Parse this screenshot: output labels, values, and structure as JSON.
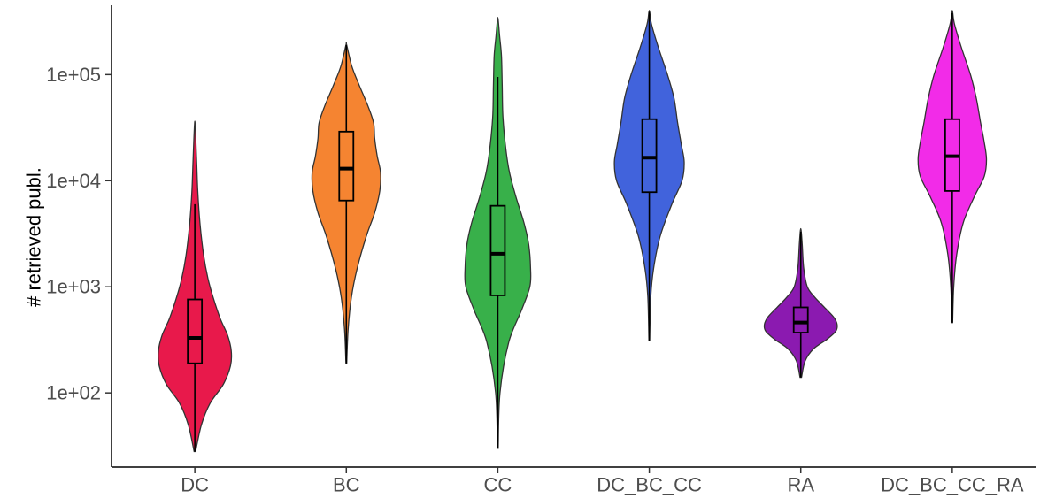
{
  "chart_data": {
    "type": "violin",
    "ylabel": "# retrieved publ.",
    "xlabel": "",
    "y_scale": "log10",
    "ylim": [
      20,
      450000
    ],
    "y_ticks": [
      100,
      1000,
      10000,
      100000
    ],
    "y_tick_labels": [
      "1e+02",
      "1e+03",
      "1e+04",
      "1e+05"
    ],
    "categories": [
      "DC",
      "BC",
      "CC",
      "DC_BC_CC",
      "RA",
      "DC_BC_CC_RA"
    ],
    "series": [
      {
        "category": "DC",
        "color": "#E8194B",
        "min": 28,
        "q1": 190,
        "median": 330,
        "q3": 760,
        "whisker_high": 6000,
        "max": 33000,
        "density": [
          [
            28,
            0.02
          ],
          [
            50,
            0.18
          ],
          [
            80,
            0.42
          ],
          [
            120,
            0.78
          ],
          [
            180,
            0.98
          ],
          [
            250,
            1.0
          ],
          [
            350,
            0.9
          ],
          [
            500,
            0.7
          ],
          [
            800,
            0.5
          ],
          [
            1200,
            0.36
          ],
          [
            2000,
            0.24
          ],
          [
            4000,
            0.14
          ],
          [
            8000,
            0.08
          ],
          [
            15000,
            0.05
          ],
          [
            33000,
            0.01
          ]
        ]
      },
      {
        "category": "BC",
        "color": "#F58431",
        "min": 190,
        "q1": 6500,
        "median": 13000,
        "q3": 29000,
        "whisker_high": 190000,
        "max": 190000,
        "density": [
          [
            190,
            0.01
          ],
          [
            400,
            0.05
          ],
          [
            800,
            0.14
          ],
          [
            1500,
            0.3
          ],
          [
            3000,
            0.55
          ],
          [
            5000,
            0.78
          ],
          [
            8000,
            0.92
          ],
          [
            12000,
            0.94
          ],
          [
            17000,
            0.85
          ],
          [
            25000,
            0.78
          ],
          [
            35000,
            0.75
          ],
          [
            50000,
            0.6
          ],
          [
            80000,
            0.35
          ],
          [
            120000,
            0.15
          ],
          [
            190000,
            0.01
          ]
        ]
      },
      {
        "category": "CC",
        "color": "#38B04A",
        "min": 30,
        "q1": 830,
        "median": 2050,
        "q3": 5800,
        "whisker_high": 95000,
        "max": 330000,
        "density": [
          [
            30,
            0.01
          ],
          [
            100,
            0.06
          ],
          [
            300,
            0.3
          ],
          [
            600,
            0.65
          ],
          [
            1000,
            0.88
          ],
          [
            1500,
            0.9
          ],
          [
            2500,
            0.85
          ],
          [
            4000,
            0.72
          ],
          [
            7000,
            0.5
          ],
          [
            12000,
            0.32
          ],
          [
            20000,
            0.22
          ],
          [
            40000,
            0.14
          ],
          [
            80000,
            0.12
          ],
          [
            150000,
            0.1
          ],
          [
            230000,
            0.05
          ],
          [
            330000,
            0.01
          ]
        ]
      },
      {
        "category": "DC_BC_CC",
        "color": "#4163DC",
        "min": 310,
        "q1": 7800,
        "median": 16500,
        "q3": 38000,
        "whisker_high": 390000,
        "max": 390000,
        "density": [
          [
            310,
            0.01
          ],
          [
            800,
            0.04
          ],
          [
            1500,
            0.12
          ],
          [
            3000,
            0.3
          ],
          [
            6000,
            0.62
          ],
          [
            10000,
            0.9
          ],
          [
            15000,
            0.96
          ],
          [
            22000,
            0.88
          ],
          [
            35000,
            0.78
          ],
          [
            60000,
            0.68
          ],
          [
            100000,
            0.5
          ],
          [
            180000,
            0.25
          ],
          [
            300000,
            0.06
          ],
          [
            390000,
            0.01
          ]
        ]
      },
      {
        "category": "RA",
        "color": "#8B1AB0",
        "min": 140,
        "q1": 370,
        "median": 460,
        "q3": 640,
        "whisker_high": 3300,
        "max": 3400,
        "density": [
          [
            140,
            0.02
          ],
          [
            200,
            0.12
          ],
          [
            260,
            0.35
          ],
          [
            320,
            0.72
          ],
          [
            380,
            0.96
          ],
          [
            440,
            1.0
          ],
          [
            520,
            0.9
          ],
          [
            640,
            0.65
          ],
          [
            800,
            0.38
          ],
          [
            1000,
            0.18
          ],
          [
            1500,
            0.08
          ],
          [
            2500,
            0.04
          ],
          [
            3400,
            0.01
          ]
        ]
      },
      {
        "category": "DC_BC_CC_RA",
        "color": "#F22BE8",
        "min": 460,
        "q1": 8000,
        "median": 17000,
        "q3": 38000,
        "whisker_high": 380000,
        "max": 390000,
        "density": [
          [
            460,
            0.01
          ],
          [
            1000,
            0.04
          ],
          [
            2000,
            0.12
          ],
          [
            4000,
            0.3
          ],
          [
            7000,
            0.6
          ],
          [
            11000,
            0.88
          ],
          [
            16000,
            0.94
          ],
          [
            24000,
            0.87
          ],
          [
            35000,
            0.78
          ],
          [
            60000,
            0.66
          ],
          [
            100000,
            0.5
          ],
          [
            180000,
            0.25
          ],
          [
            300000,
            0.06
          ],
          [
            390000,
            0.01
          ]
        ]
      }
    ]
  }
}
